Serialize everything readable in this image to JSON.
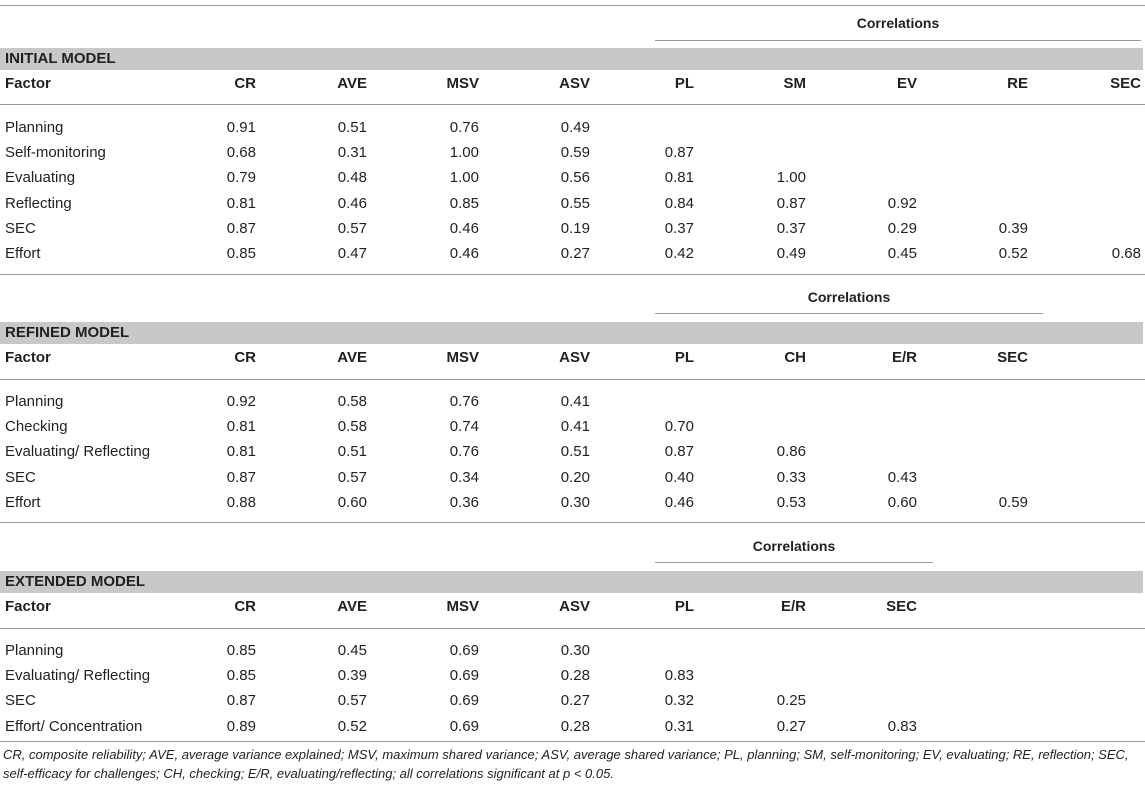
{
  "initial": {
    "title": "INITIAL MODEL",
    "correlations_label": "Correlations",
    "headers": [
      "Factor",
      "CR",
      "AVE",
      "MSV",
      "ASV",
      "PL",
      "SM",
      "EV",
      "RE",
      "SEC"
    ],
    "rows": [
      [
        "Planning",
        "0.91",
        "0.51",
        "0.76",
        "0.49",
        "",
        "",
        "",
        "",
        ""
      ],
      [
        "Self-monitoring",
        "0.68",
        "0.31",
        "1.00",
        "0.59",
        "0.87",
        "",
        "",
        "",
        ""
      ],
      [
        "Evaluating",
        "0.79",
        "0.48",
        "1.00",
        "0.56",
        "0.81",
        "1.00",
        "",
        "",
        ""
      ],
      [
        "Reflecting",
        "0.81",
        "0.46",
        "0.85",
        "0.55",
        "0.84",
        "0.87",
        "0.92",
        "",
        ""
      ],
      [
        "SEC",
        "0.87",
        "0.57",
        "0.46",
        "0.19",
        "0.37",
        "0.37",
        "0.29",
        "0.39",
        ""
      ],
      [
        "Effort",
        "0.85",
        "0.47",
        "0.46",
        "0.27",
        "0.42",
        "0.49",
        "0.45",
        "0.52",
        "0.68"
      ]
    ]
  },
  "refined": {
    "title": "REFINED MODEL",
    "correlations_label": "Correlations",
    "headers": [
      "Factor",
      "CR",
      "AVE",
      "MSV",
      "ASV",
      "PL",
      "CH",
      "E/R",
      "SEC"
    ],
    "rows": [
      [
        "Planning",
        "0.92",
        "0.58",
        "0.76",
        "0.41",
        "",
        "",
        "",
        ""
      ],
      [
        "Checking",
        "0.81",
        "0.58",
        "0.74",
        "0.41",
        "0.70",
        "",
        "",
        ""
      ],
      [
        "Evaluating/ Reflecting",
        "0.81",
        "0.51",
        "0.76",
        "0.51",
        "0.87",
        "0.86",
        "",
        ""
      ],
      [
        "SEC",
        "0.87",
        "0.57",
        "0.34",
        "0.20",
        "0.40",
        "0.33",
        "0.43",
        ""
      ],
      [
        "Effort",
        "0.88",
        "0.60",
        "0.36",
        "0.30",
        "0.46",
        "0.53",
        "0.60",
        "0.59"
      ]
    ]
  },
  "extended": {
    "title": "EXTENDED MODEL",
    "correlations_label": "Correlations",
    "headers": [
      "Factor",
      "CR",
      "AVE",
      "MSV",
      "ASV",
      "PL",
      "E/R",
      "SEC"
    ],
    "rows": [
      [
        "Planning",
        "0.85",
        "0.45",
        "0.69",
        "0.30",
        "",
        "",
        ""
      ],
      [
        "Evaluating/ Reflecting",
        "0.85",
        "0.39",
        "0.69",
        "0.28",
        "0.83",
        "",
        ""
      ],
      [
        "SEC",
        "0.87",
        "0.57",
        "0.69",
        "0.27",
        "0.32",
        "0.25",
        ""
      ],
      [
        "Effort/ Concentration",
        "0.89",
        "0.52",
        "0.69",
        "0.28",
        "0.31",
        "0.27",
        "0.83"
      ]
    ]
  },
  "footnote": "CR, composite reliability; AVE, average variance explained; MSV, maximum shared variance; ASV, average shared variance; PL, planning; SM, self-monitoring; EV, evaluating; RE, reflection; SEC, self-efficacy for challenges; CH, checking; E/R, evaluating/reflecting; all correlations significant at p < 0.05."
}
